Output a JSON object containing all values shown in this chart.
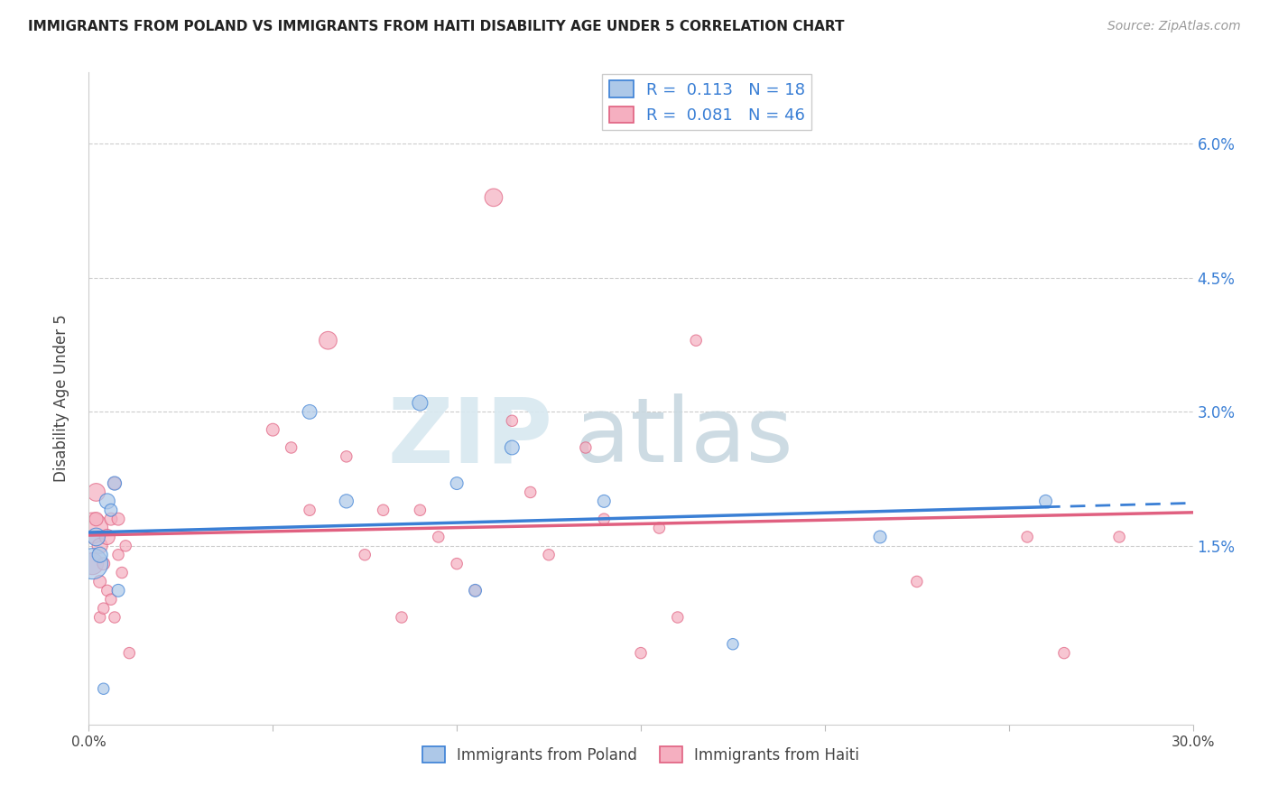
{
  "title": "IMMIGRANTS FROM POLAND VS IMMIGRANTS FROM HAITI DISABILITY AGE UNDER 5 CORRELATION CHART",
  "source": "Source: ZipAtlas.com",
  "xlabel": "",
  "ylabel": "Disability Age Under 5",
  "legend_poland": "Immigrants from Poland",
  "legend_haiti": "Immigrants from Haiti",
  "r_poland": 0.113,
  "n_poland": 18,
  "r_haiti": 0.081,
  "n_haiti": 46,
  "xmin": 0.0,
  "xmax": 0.3,
  "ymin": -0.005,
  "ymax": 0.068,
  "yticks": [
    0.015,
    0.03,
    0.045,
    0.06
  ],
  "ytick_labels": [
    "1.5%",
    "3.0%",
    "4.5%",
    "6.0%"
  ],
  "xticks": [
    0.0,
    0.05,
    0.1,
    0.15,
    0.2,
    0.25,
    0.3
  ],
  "xtick_labels": [
    "0.0%",
    "",
    "",
    "",
    "",
    "",
    "30.0%"
  ],
  "color_poland": "#adc8e8",
  "color_haiti": "#f5afc0",
  "trend_poland_color": "#3a7fd5",
  "trend_haiti_color": "#e06080",
  "watermark_zip": "ZIP",
  "watermark_atlas": "atlas",
  "poland_x": [
    0.001,
    0.002,
    0.003,
    0.004,
    0.005,
    0.006,
    0.007,
    0.008,
    0.06,
    0.07,
    0.09,
    0.1,
    0.105,
    0.115,
    0.14,
    0.175,
    0.215,
    0.26
  ],
  "poland_y": [
    0.013,
    0.016,
    0.014,
    -0.001,
    0.02,
    0.019,
    0.022,
    0.01,
    0.03,
    0.02,
    0.031,
    0.022,
    0.01,
    0.026,
    0.02,
    0.004,
    0.016,
    0.02
  ],
  "poland_size": [
    600,
    200,
    150,
    80,
    150,
    100,
    120,
    100,
    130,
    120,
    150,
    100,
    100,
    130,
    100,
    80,
    100,
    100
  ],
  "haiti_x": [
    0.001,
    0.001,
    0.002,
    0.002,
    0.003,
    0.003,
    0.003,
    0.004,
    0.004,
    0.005,
    0.005,
    0.006,
    0.006,
    0.007,
    0.007,
    0.008,
    0.008,
    0.009,
    0.01,
    0.011,
    0.05,
    0.055,
    0.06,
    0.065,
    0.07,
    0.075,
    0.08,
    0.085,
    0.09,
    0.095,
    0.1,
    0.105,
    0.11,
    0.115,
    0.12,
    0.125,
    0.135,
    0.14,
    0.15,
    0.155,
    0.16,
    0.165,
    0.225,
    0.255,
    0.265,
    0.28
  ],
  "haiti_y": [
    0.017,
    0.013,
    0.021,
    0.018,
    0.015,
    0.011,
    0.007,
    0.013,
    0.008,
    0.016,
    0.01,
    0.018,
    0.009,
    0.022,
    0.007,
    0.018,
    0.014,
    0.012,
    0.015,
    0.003,
    0.028,
    0.026,
    0.019,
    0.038,
    0.025,
    0.014,
    0.019,
    0.007,
    0.019,
    0.016,
    0.013,
    0.01,
    0.054,
    0.029,
    0.021,
    0.014,
    0.026,
    0.018,
    0.003,
    0.017,
    0.007,
    0.038,
    0.011,
    0.016,
    0.003,
    0.016
  ],
  "haiti_size": [
    600,
    300,
    200,
    120,
    150,
    100,
    80,
    100,
    80,
    150,
    80,
    100,
    80,
    100,
    80,
    100,
    80,
    80,
    80,
    80,
    100,
    80,
    80,
    200,
    80,
    80,
    80,
    80,
    80,
    80,
    80,
    80,
    200,
    80,
    80,
    80,
    80,
    80,
    80,
    80,
    80,
    80,
    80,
    80,
    80,
    80
  ]
}
